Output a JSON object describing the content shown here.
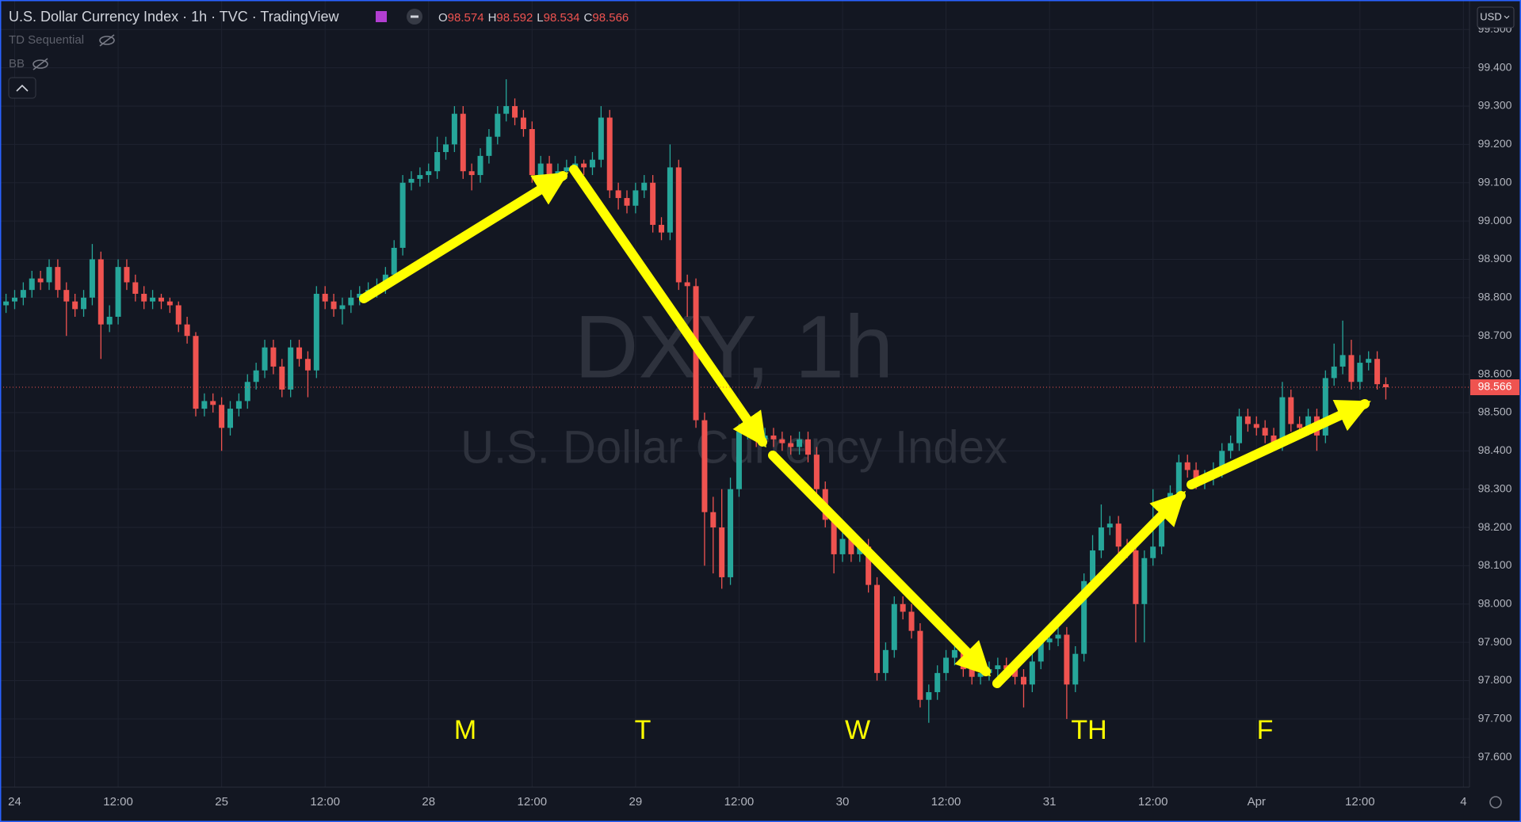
{
  "chart_data": {
    "type": "candlestick",
    "header": {
      "title": "U.S. Dollar Currency Index · 1h · TVC · TradingView",
      "ohlc": [
        {
          "label": "O",
          "value": 98.574
        },
        {
          "label": "H",
          "value": 98.592
        },
        {
          "label": "L",
          "value": 98.534
        },
        {
          "label": "C",
          "value": 98.566
        }
      ]
    },
    "indicators": [
      "TD Sequential",
      "BB"
    ],
    "currency": "USD",
    "watermark": {
      "symbol": "DXY, 1h",
      "name": "U.S. Dollar Currency Index"
    },
    "annotations": [
      "M",
      "T",
      "W",
      "TH",
      "F"
    ],
    "up_color": "#26a69a",
    "down_color": "#ef5350",
    "last_price": {
      "value": 98.566,
      "label": "98.566",
      "color": "#ef5350"
    },
    "grid": true,
    "xlim": [
      -0.7,
      169.7
    ],
    "xticks": [
      {
        "value": 1,
        "label": "24"
      },
      {
        "value": 13,
        "label": "12:00"
      },
      {
        "value": 25,
        "label": "25"
      },
      {
        "value": 37,
        "label": "12:00"
      },
      {
        "value": 49,
        "label": "28"
      },
      {
        "value": 61,
        "label": "12:00"
      },
      {
        "value": 73,
        "label": "29"
      },
      {
        "value": 85,
        "label": "12:00"
      },
      {
        "value": 97,
        "label": "30"
      },
      {
        "value": 109,
        "label": "12:00"
      },
      {
        "value": 121,
        "label": "31"
      },
      {
        "value": 133,
        "label": "12:00"
      },
      {
        "value": 145,
        "label": "Apr"
      },
      {
        "value": 157,
        "label": "12:00"
      },
      {
        "value": 169,
        "label": "4"
      }
    ],
    "ylim": [
      97.522,
      99.577
    ],
    "yticks": [
      {
        "value": 97.6,
        "label": "97.600"
      },
      {
        "value": 97.7,
        "label": "97.700"
      },
      {
        "value": 97.8,
        "label": "97.800"
      },
      {
        "value": 97.9,
        "label": "97.900"
      },
      {
        "value": 98.0,
        "label": "98.000"
      },
      {
        "value": 98.1,
        "label": "98.100"
      },
      {
        "value": 98.2,
        "label": "98.200"
      },
      {
        "value": 98.3,
        "label": "98.300"
      },
      {
        "value": 98.4,
        "label": "98.400"
      },
      {
        "value": 98.5,
        "label": "98.500"
      },
      {
        "value": 98.6,
        "label": "98.600"
      },
      {
        "value": 98.7,
        "label": "98.700"
      },
      {
        "value": 98.8,
        "label": "98.800"
      },
      {
        "value": 98.9,
        "label": "98.900"
      },
      {
        "value": 99.0,
        "label": "99.000"
      },
      {
        "value": 99.1,
        "label": "99.100"
      },
      {
        "value": 99.2,
        "label": "99.200"
      },
      {
        "value": 99.3,
        "label": "99.300"
      },
      {
        "value": 99.4,
        "label": "99.400"
      },
      {
        "value": 99.5,
        "label": "99.500"
      }
    ],
    "open": [
      98.78,
      98.79,
      98.8,
      98.82,
      98.85,
      98.84,
      98.88,
      98.82,
      98.79,
      98.77,
      98.8,
      98.9,
      98.73,
      98.75,
      98.88,
      98.84,
      98.81,
      98.79,
      98.8,
      98.79,
      98.78,
      98.73,
      98.7,
      98.51,
      98.53,
      98.52,
      98.46,
      98.51,
      98.53,
      98.58,
      98.61,
      98.67,
      98.62,
      98.56,
      98.67,
      98.64,
      98.61,
      98.81,
      98.79,
      98.77,
      98.78,
      98.8,
      98.81,
      98.82,
      98.83,
      98.86,
      98.93,
      99.1,
      99.11,
      99.12,
      99.13,
      99.18,
      99.2,
      99.28,
      99.13,
      99.12,
      99.17,
      99.22,
      99.28,
      99.3,
      99.27,
      99.24,
      99.12,
      99.15,
      99.11,
      99.13,
      99.14,
      99.15,
      99.14,
      99.16,
      99.27,
      99.08,
      99.06,
      99.04,
      99.08,
      99.1,
      98.99,
      98.97,
      99.14,
      98.84,
      98.83,
      98.48,
      98.24,
      98.2,
      98.07,
      98.3,
      98.45,
      98.46,
      98.43,
      98.44,
      98.43,
      98.42,
      98.41,
      98.43,
      98.39,
      98.3,
      98.22,
      98.13,
      98.17,
      98.13,
      98.15,
      98.05,
      97.82,
      97.88,
      98.0,
      97.98,
      97.93,
      97.75,
      97.77,
      97.82,
      97.86,
      97.88,
      97.83,
      97.81,
      97.82,
      97.83,
      97.84,
      97.83,
      97.81,
      97.79,
      97.85,
      97.9,
      97.91,
      97.92,
      97.79,
      97.87,
      98.06,
      98.14,
      98.2,
      98.21,
      98.15,
      98.14,
      98.0,
      98.12,
      98.15,
      98.24,
      98.29,
      98.37,
      98.35,
      98.32,
      98.33,
      98.35,
      98.4,
      98.42,
      98.49,
      98.47,
      98.46,
      98.44,
      98.42,
      98.54,
      98.47,
      98.46,
      98.49,
      98.44,
      98.59,
      98.62,
      98.65,
      98.58,
      98.63,
      98.64,
      98.574
    ],
    "high": [
      98.81,
      98.82,
      98.84,
      98.87,
      98.87,
      98.9,
      98.9,
      98.84,
      98.81,
      98.82,
      98.94,
      98.92,
      98.78,
      98.9,
      98.9,
      98.86,
      98.83,
      98.82,
      98.81,
      98.8,
      98.79,
      98.75,
      98.71,
      98.55,
      98.55,
      98.54,
      98.53,
      98.55,
      98.6,
      98.63,
      98.69,
      98.69,
      98.64,
      98.69,
      98.69,
      98.66,
      98.83,
      98.83,
      98.81,
      98.8,
      98.82,
      98.83,
      98.84,
      98.85,
      98.88,
      98.95,
      99.12,
      99.13,
      99.14,
      99.15,
      99.22,
      99.22,
      99.3,
      99.3,
      99.15,
      99.19,
      99.24,
      99.3,
      99.37,
      99.32,
      99.29,
      99.26,
      99.17,
      99.17,
      99.15,
      99.16,
      99.17,
      99.16,
      99.18,
      99.3,
      99.29,
      99.1,
      99.08,
      99.1,
      99.12,
      99.12,
      99.01,
      99.2,
      99.16,
      98.86,
      98.85,
      98.5,
      98.28,
      98.3,
      98.33,
      98.47,
      98.48,
      98.48,
      98.46,
      98.46,
      98.45,
      98.44,
      98.45,
      98.45,
      98.41,
      98.32,
      98.24,
      98.19,
      98.19,
      98.17,
      98.17,
      98.07,
      97.9,
      98.02,
      98.02,
      98.0,
      97.95,
      97.79,
      97.84,
      97.88,
      97.9,
      97.9,
      97.85,
      97.84,
      97.85,
      97.86,
      97.86,
      97.85,
      97.83,
      97.87,
      97.92,
      97.93,
      97.94,
      97.94,
      97.89,
      98.08,
      98.18,
      98.26,
      98.23,
      98.23,
      98.17,
      98.16,
      98.14,
      98.3,
      98.26,
      98.31,
      98.39,
      98.39,
      98.37,
      98.35,
      98.37,
      98.42,
      98.44,
      98.51,
      98.51,
      98.49,
      98.48,
      98.46,
      98.58,
      98.56,
      98.49,
      98.51,
      98.51,
      98.61,
      98.68,
      98.74,
      98.69,
      98.65,
      98.66,
      98.66,
      98.592
    ],
    "low": [
      98.76,
      98.77,
      98.78,
      98.8,
      98.82,
      98.82,
      98.8,
      98.7,
      98.75,
      98.75,
      98.78,
      98.64,
      98.71,
      98.73,
      98.82,
      98.79,
      98.77,
      98.77,
      98.77,
      98.76,
      98.71,
      98.68,
      98.49,
      98.49,
      98.5,
      98.4,
      98.44,
      98.49,
      98.51,
      98.56,
      98.59,
      98.6,
      98.54,
      98.54,
      98.62,
      98.54,
      98.59,
      98.77,
      98.75,
      98.73,
      98.76,
      98.78,
      98.79,
      98.8,
      98.81,
      98.84,
      98.91,
      99.08,
      99.09,
      99.1,
      99.11,
      99.16,
      99.18,
      99.11,
      99.08,
      99.1,
      99.15,
      99.2,
      99.26,
      99.25,
      99.22,
      99.1,
      99.1,
      99.09,
      99.09,
      99.11,
      99.12,
      99.12,
      99.12,
      99.14,
      99.06,
      99.03,
      99.02,
      99.02,
      99.06,
      98.97,
      98.95,
      98.95,
      98.82,
      98.75,
      98.46,
      98.1,
      98.08,
      98.04,
      98.05,
      98.28,
      98.43,
      98.41,
      98.41,
      98.41,
      98.4,
      98.39,
      98.39,
      98.37,
      98.28,
      98.2,
      98.08,
      98.11,
      98.11,
      98.11,
      98.03,
      97.8,
      97.8,
      97.86,
      97.96,
      97.91,
      97.73,
      97.69,
      97.75,
      97.8,
      97.84,
      97.81,
      97.79,
      97.79,
      97.8,
      97.81,
      97.81,
      97.79,
      97.73,
      97.77,
      97.83,
      97.88,
      97.89,
      97.7,
      97.77,
      97.85,
      98.04,
      98.12,
      98.18,
      98.13,
      98.12,
      97.9,
      97.9,
      98.1,
      98.13,
      98.22,
      98.27,
      98.33,
      98.3,
      98.3,
      98.31,
      98.33,
      98.38,
      98.4,
      98.45,
      98.44,
      98.42,
      98.4,
      98.4,
      98.45,
      98.44,
      98.44,
      98.4,
      98.42,
      98.57,
      98.6,
      98.56,
      98.56,
      98.61,
      98.56,
      98.534
    ],
    "close": [
      98.79,
      98.8,
      98.82,
      98.85,
      98.84,
      98.88,
      98.82,
      98.79,
      98.77,
      98.8,
      98.9,
      98.73,
      98.75,
      98.88,
      98.84,
      98.81,
      98.79,
      98.8,
      98.79,
      98.78,
      98.73,
      98.7,
      98.51,
      98.53,
      98.52,
      98.46,
      98.51,
      98.53,
      98.58,
      98.61,
      98.67,
      98.62,
      98.56,
      98.67,
      98.64,
      98.61,
      98.81,
      98.79,
      98.77,
      98.78,
      98.8,
      98.81,
      98.82,
      98.83,
      98.86,
      98.93,
      99.1,
      99.11,
      99.12,
      99.13,
      99.18,
      99.2,
      99.28,
      99.13,
      99.12,
      99.17,
      99.22,
      99.28,
      99.3,
      99.27,
      99.24,
      99.12,
      99.15,
      99.11,
      99.13,
      99.14,
      99.15,
      99.14,
      99.16,
      99.27,
      99.08,
      99.06,
      99.04,
      99.08,
      99.1,
      98.99,
      98.97,
      99.14,
      98.84,
      98.83,
      98.48,
      98.24,
      98.2,
      98.07,
      98.3,
      98.45,
      98.46,
      98.43,
      98.44,
      98.43,
      98.42,
      98.41,
      98.43,
      98.39,
      98.3,
      98.22,
      98.13,
      98.17,
      98.13,
      98.15,
      98.05,
      97.82,
      97.88,
      98.0,
      97.98,
      97.93,
      97.75,
      97.77,
      97.82,
      97.86,
      97.88,
      97.83,
      97.81,
      97.82,
      97.83,
      97.84,
      97.83,
      97.81,
      97.79,
      97.85,
      97.9,
      97.91,
      97.92,
      97.79,
      97.87,
      98.06,
      98.14,
      98.2,
      98.21,
      98.15,
      98.14,
      98.0,
      98.12,
      98.15,
      98.24,
      98.29,
      98.37,
      98.35,
      98.32,
      98.33,
      98.35,
      98.4,
      98.42,
      98.49,
      98.47,
      98.46,
      98.44,
      98.42,
      98.54,
      98.47,
      98.46,
      98.49,
      98.44,
      98.59,
      98.62,
      98.65,
      98.58,
      98.63,
      98.64,
      98.574,
      98.566
    ]
  }
}
